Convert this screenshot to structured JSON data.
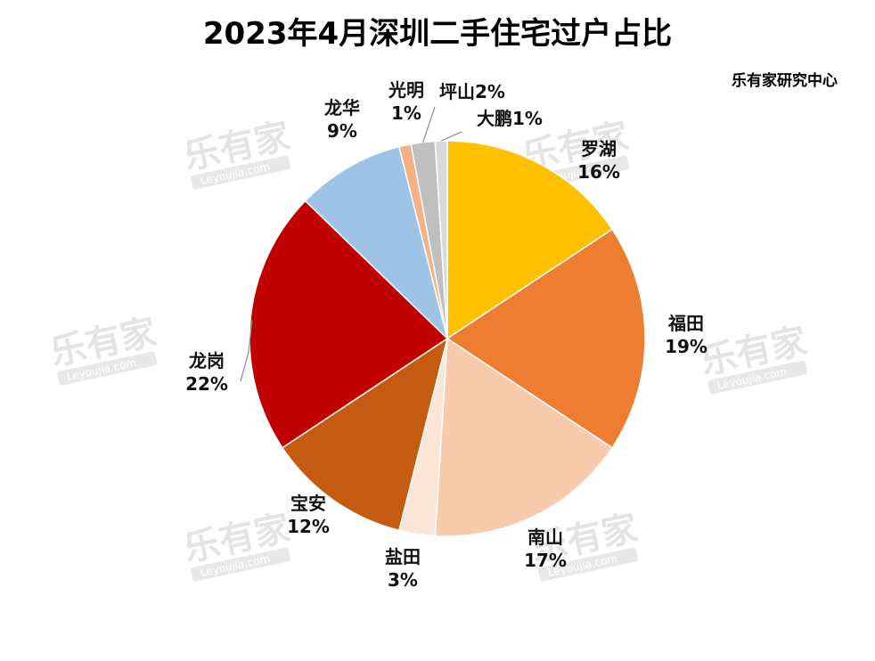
{
  "title": "2023年4月深圳二手住宅过户占比",
  "source": "乐有家研究中心",
  "watermark": {
    "text": "乐有家",
    "sub": "Leyoujia.com"
  },
  "chart_data": {
    "type": "pie",
    "categories": [
      "罗湖",
      "福田",
      "南山",
      "盐田",
      "宝安",
      "龙岗",
      "龙华",
      "光明",
      "坪山",
      "大鹏"
    ],
    "values": [
      16,
      19,
      17,
      3,
      12,
      22,
      9,
      1,
      2,
      1
    ],
    "labels": [
      "16%",
      "19%",
      "17%",
      "3%",
      "12%",
      "22%",
      "9%",
      "1%",
      "2%",
      "1%"
    ],
    "colors": [
      "#FFC000",
      "#ED7D31",
      "#F8CBAD",
      "#FBE5D6",
      "#C55A11",
      "#C00000",
      "#9DC3E6",
      "#F4B183",
      "#BFBFBF",
      "#D9D9D9"
    ]
  }
}
